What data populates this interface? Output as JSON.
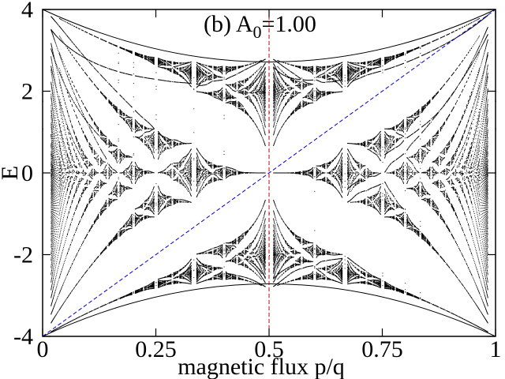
{
  "chart_data": {
    "type": "scatter",
    "title": {
      "prefix": "(b) A",
      "subscript": "0",
      "suffix": "=1.00"
    },
    "xlabel": "magnetic flux p/q",
    "ylabel": "E",
    "xlim": [
      0,
      1
    ],
    "ylim": [
      -4,
      4
    ],
    "x_ticks": [
      {
        "value": 0,
        "label": "0"
      },
      {
        "value": 0.25,
        "label": "0.25"
      },
      {
        "value": 0.5,
        "label": "0.5"
      },
      {
        "value": 0.75,
        "label": "0.75"
      },
      {
        "value": 1,
        "label": "1"
      }
    ],
    "y_ticks": [
      {
        "value": -4,
        "label": "-4"
      },
      {
        "value": -2,
        "label": "-2"
      },
      {
        "value": 0,
        "label": "0"
      },
      {
        "value": 2,
        "label": "2"
      },
      {
        "value": 4,
        "label": "4"
      }
    ],
    "grid": false,
    "spectrum": {
      "description_of_data": "Hofstadter butterfly energy spectrum E vs flux p/q",
      "max_q": 56,
      "lattice_size_ref": 0,
      "point_color": "#000000"
    },
    "reference_lines": [
      {
        "kind": "vertical",
        "x": 0.5,
        "y_range": [
          -4,
          4
        ],
        "color": "#cc0000",
        "style": "dashed"
      },
      {
        "kind": "diagonal",
        "from": [
          0,
          -4
        ],
        "to": [
          1,
          4
        ],
        "color": "#0000cc",
        "style": "dashed"
      }
    ],
    "edge_lines": [
      {
        "points": [
          [
            0,
            4
          ],
          [
            0.5,
            2.83
          ],
          [
            1,
            4
          ]
        ],
        "side": "upper-envelope"
      },
      {
        "points": [
          [
            0,
            -4
          ],
          [
            0.5,
            -2.83
          ],
          [
            1,
            -4
          ]
        ],
        "side": "lower-envelope"
      }
    ]
  }
}
